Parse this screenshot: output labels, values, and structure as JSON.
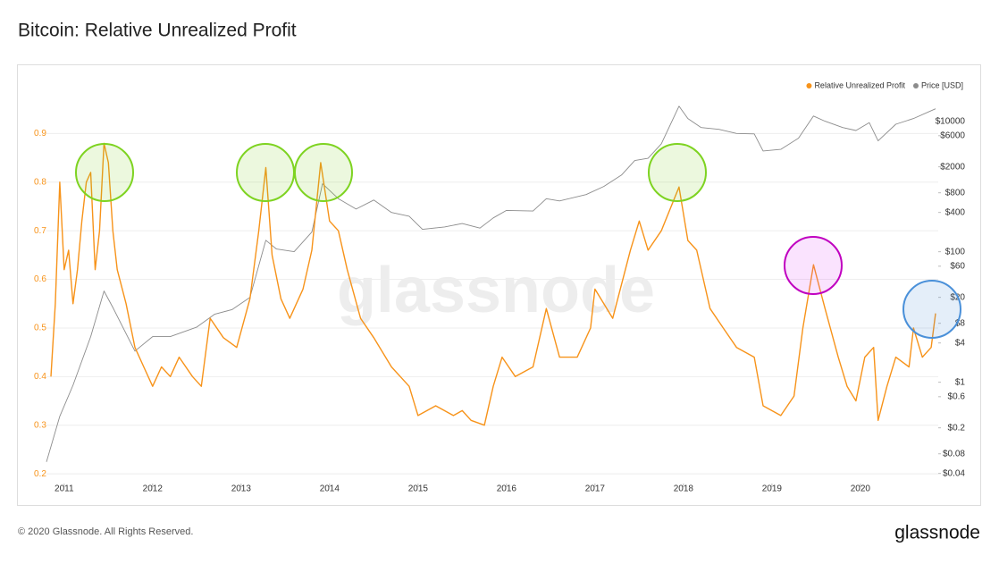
{
  "chart_data": {
    "type": "line",
    "title": "Bitcoin: Relative Unrealized Profit",
    "watermark": "glassnode",
    "footer": "© 2020 Glassnode. All Rights Reserved.",
    "brand": "glassnode",
    "legend": "top-right",
    "xlim": [
      2010.8,
      2020.88
    ],
    "xticks": [
      2011,
      2012,
      2013,
      2014,
      2015,
      2016,
      2017,
      2018,
      2019,
      2020
    ],
    "ylim": [
      0.18,
      1.0
    ],
    "yticks": [
      0.2,
      0.3,
      0.4,
      0.5,
      0.6,
      0.7,
      0.8,
      0.9
    ],
    "y2log": true,
    "y2lim": [
      0.028,
      36000
    ],
    "y2ticks": [
      {
        "value": 10000,
        "label": "$10000"
      },
      {
        "value": 6000,
        "label": "$6000"
      },
      {
        "value": 2000,
        "label": "$2000"
      },
      {
        "value": 800,
        "label": "$800"
      },
      {
        "value": 400,
        "label": "$400"
      },
      {
        "value": 100,
        "label": "$100"
      },
      {
        "value": 60,
        "label": "$60"
      },
      {
        "value": 20,
        "label": "$20"
      },
      {
        "value": 8,
        "label": "$8"
      },
      {
        "value": 4,
        "label": "$4"
      },
      {
        "value": 1,
        "label": "$1"
      },
      {
        "value": 0.6,
        "label": "$0.6"
      },
      {
        "value": 0.2,
        "label": "$0.2"
      },
      {
        "value": 0.08,
        "label": "$0.08"
      },
      {
        "value": 0.04,
        "label": "$0.04"
      }
    ],
    "grid": true,
    "series": [
      {
        "name": "Price [USD]",
        "color": "#8c8c8c",
        "axis": "y2",
        "x": [
          2010.8,
          2010.95,
          2011.1,
          2011.3,
          2011.45,
          2011.55,
          2011.8,
          2012.0,
          2012.2,
          2012.5,
          2012.7,
          2012.9,
          2013.1,
          2013.28,
          2013.4,
          2013.6,
          2013.8,
          2013.92,
          2014.1,
          2014.3,
          2014.5,
          2014.7,
          2014.9,
          2015.05,
          2015.3,
          2015.5,
          2015.7,
          2015.85,
          2016.0,
          2016.3,
          2016.45,
          2016.6,
          2016.9,
          2017.1,
          2017.3,
          2017.45,
          2017.6,
          2017.75,
          2017.95,
          2018.05,
          2018.2,
          2018.4,
          2018.6,
          2018.8,
          2018.9,
          2019.1,
          2019.3,
          2019.47,
          2019.6,
          2019.8,
          2019.95,
          2020.1,
          2020.2,
          2020.4,
          2020.6,
          2020.85
        ],
        "values": [
          0.06,
          0.3,
          0.9,
          5,
          25,
          14,
          3,
          5,
          5,
          7,
          11,
          13,
          20,
          150,
          110,
          100,
          200,
          1100,
          650,
          450,
          620,
          400,
          350,
          220,
          240,
          270,
          230,
          330,
          430,
          420,
          650,
          600,
          750,
          1000,
          1500,
          2500,
          2700,
          4500,
          17000,
          11000,
          8000,
          7500,
          6500,
          6400,
          3500,
          3700,
          5500,
          12000,
          10000,
          8000,
          7200,
          9500,
          5000,
          9000,
          11000,
          15500
        ]
      },
      {
        "name": "Relative Unrealized Profit",
        "color": "#f7931a",
        "axis": "y",
        "x": [
          2010.85,
          2010.9,
          2010.95,
          2011.0,
          2011.05,
          2011.1,
          2011.15,
          2011.2,
          2011.25,
          2011.3,
          2011.35,
          2011.4,
          2011.45,
          2011.5,
          2011.55,
          2011.6,
          2011.7,
          2011.8,
          2011.9,
          2012.0,
          2012.1,
          2012.2,
          2012.3,
          2012.45,
          2012.55,
          2012.65,
          2012.8,
          2012.95,
          2013.1,
          2013.2,
          2013.28,
          2013.35,
          2013.45,
          2013.55,
          2013.7,
          2013.8,
          2013.9,
          2014.0,
          2014.1,
          2014.2,
          2014.35,
          2014.5,
          2014.7,
          2014.9,
          2015.0,
          2015.2,
          2015.4,
          2015.5,
          2015.6,
          2015.75,
          2015.85,
          2015.95,
          2016.1,
          2016.3,
          2016.45,
          2016.6,
          2016.8,
          2016.95,
          2017.0,
          2017.2,
          2017.4,
          2017.5,
          2017.6,
          2017.75,
          2017.95,
          2018.05,
          2018.15,
          2018.3,
          2018.45,
          2018.6,
          2018.8,
          2018.9,
          2019.1,
          2019.25,
          2019.35,
          2019.47,
          2019.6,
          2019.75,
          2019.85,
          2019.95,
          2020.05,
          2020.15,
          2020.2,
          2020.3,
          2020.4,
          2020.55,
          2020.6,
          2020.7,
          2020.8,
          2020.85
        ],
        "values": [
          0.4,
          0.55,
          0.8,
          0.62,
          0.66,
          0.55,
          0.62,
          0.72,
          0.8,
          0.82,
          0.62,
          0.7,
          0.88,
          0.84,
          0.7,
          0.62,
          0.55,
          0.46,
          0.42,
          0.38,
          0.42,
          0.4,
          0.44,
          0.4,
          0.38,
          0.52,
          0.48,
          0.46,
          0.56,
          0.7,
          0.83,
          0.65,
          0.56,
          0.52,
          0.58,
          0.66,
          0.84,
          0.72,
          0.7,
          0.62,
          0.52,
          0.48,
          0.42,
          0.38,
          0.32,
          0.34,
          0.32,
          0.33,
          0.31,
          0.3,
          0.38,
          0.44,
          0.4,
          0.42,
          0.54,
          0.44,
          0.44,
          0.5,
          0.58,
          0.52,
          0.66,
          0.72,
          0.66,
          0.7,
          0.79,
          0.68,
          0.66,
          0.54,
          0.5,
          0.46,
          0.44,
          0.34,
          0.32,
          0.36,
          0.5,
          0.63,
          0.54,
          0.44,
          0.38,
          0.35,
          0.44,
          0.46,
          0.31,
          0.38,
          0.44,
          0.42,
          0.5,
          0.44,
          0.46,
          0.53
        ]
      }
    ]
  }
}
